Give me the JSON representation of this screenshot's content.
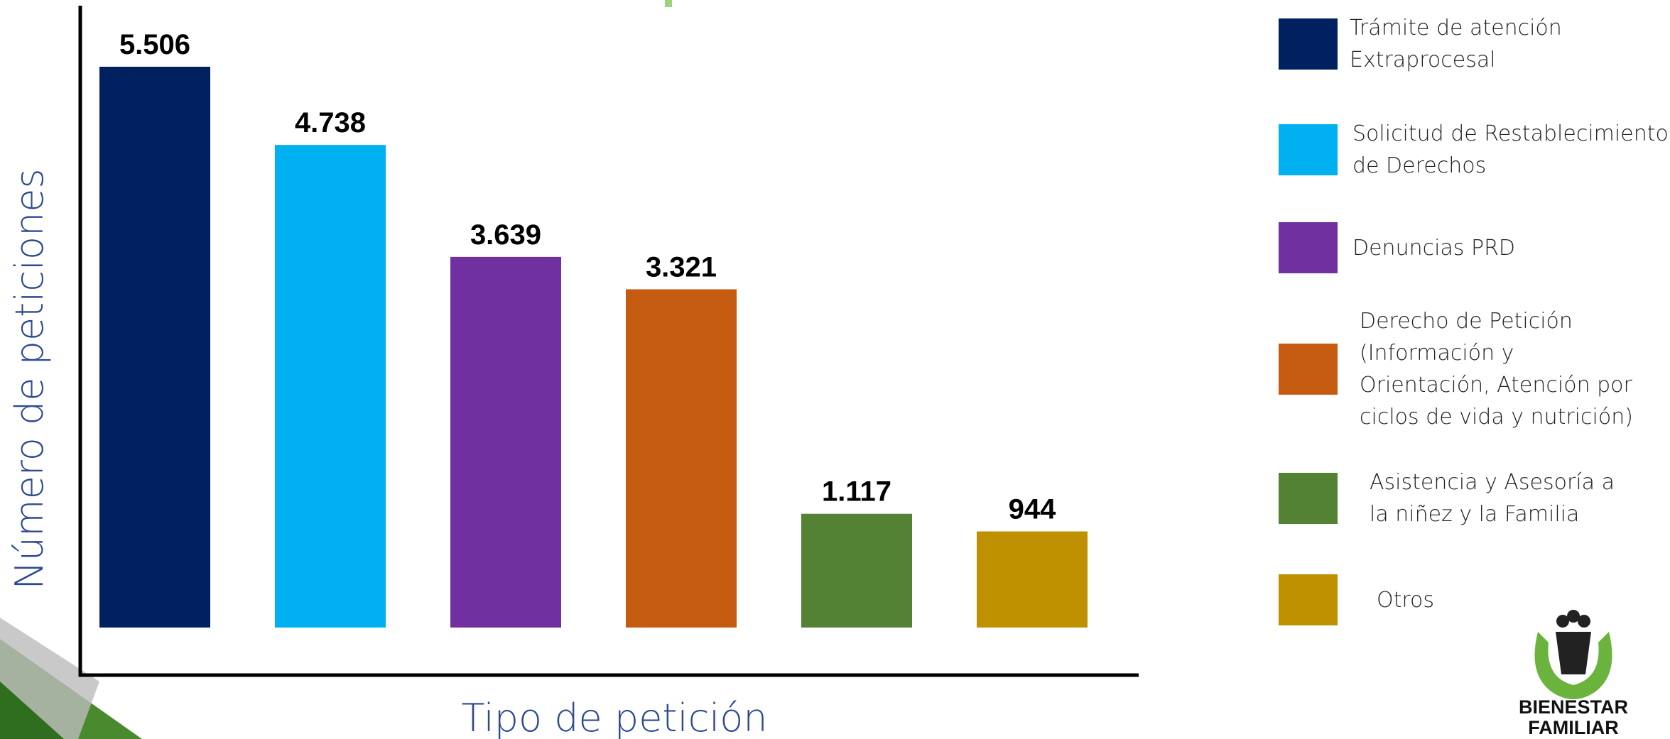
{
  "chart_data": {
    "type": "bar",
    "categories": [
      "Trámite de atención Extraprocesal",
      "Solicitud de Restablecimiento de Derechos",
      "Denuncias PRD",
      "Derecho de Petición (Información y Orientación, Atención por ciclos de vida y nutrición)",
      "Asistencia y Asesoría a la niñez y la Familia",
      "Otros"
    ],
    "values": [
      5506,
      4738,
      3639,
      3321,
      1117,
      944
    ],
    "value_labels": [
      "5.506",
      "4.738",
      "3.639",
      "3.321",
      "1.117",
      "944"
    ],
    "colors": [
      "#002060",
      "#00B0F0",
      "#7030A0",
      "#C55A11",
      "#548235",
      "#BF9000"
    ],
    "xlabel": "Tipo de petición",
    "ylabel": "Número de peticiones",
    "logo": [
      "BIENESTAR",
      "FAMILIAR"
    ]
  }
}
